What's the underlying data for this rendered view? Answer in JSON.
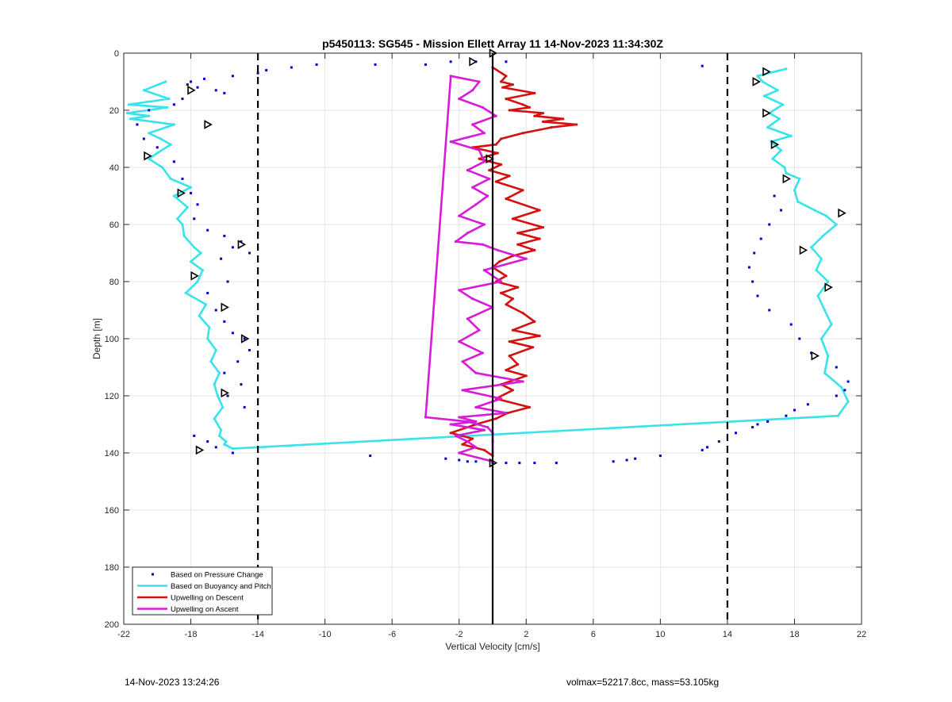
{
  "footer": {
    "left": "14-Nov-2023 13:24:26",
    "right": "volmax=52217.8cc, mass=53.105kg"
  },
  "colors": {
    "pressure": "#0000cc",
    "buoyancy": "#38e3ea",
    "descent": "#d41111",
    "ascent": "#d81bd8",
    "reference": "#000000"
  },
  "chart_data": {
    "type": "line",
    "title": "p5450113: SG545 - Mission Ellett Array 11 14-Nov-2023 11:34:30Z",
    "xlabel": "Vertical Velocity [cm/s]",
    "ylabel": "Depth [m]",
    "xlim": [
      -22,
      22
    ],
    "ylim": [
      0,
      200
    ],
    "y_reversed": true,
    "grid": true,
    "xticks": [
      -22,
      -18,
      -14,
      -10,
      -6,
      -2,
      2,
      6,
      10,
      14,
      18,
      22
    ],
    "yticks": [
      0,
      20,
      40,
      60,
      80,
      100,
      120,
      140,
      160,
      180,
      200
    ],
    "legend_location": "bottom-left",
    "legend": [
      {
        "label": "Based on Pressure Change",
        "style": "dots",
        "color": "#0000cc"
      },
      {
        "label": "Based on Buoyancy and Pitch",
        "style": "line",
        "color": "#38e3ea"
      },
      {
        "label": "Upwelling on Descent",
        "style": "line",
        "color": "#d41111"
      },
      {
        "label": "Upwelling on Ascent",
        "style": "line",
        "color": "#d81bd8"
      }
    ],
    "reference_lines": [
      {
        "x": -14,
        "style": "dashed"
      },
      {
        "x": 14,
        "style": "dashed"
      },
      {
        "x": 0,
        "style": "solid"
      }
    ],
    "series": [
      {
        "name": "Based on Buoyancy and Pitch",
        "x": [
          -19.5,
          -20.8,
          -19.3,
          -21.7,
          -19.4,
          -21.8,
          -20.5,
          -21.6,
          -19.0,
          -20.5,
          -19.8,
          -19.2,
          -20.0,
          -20.5,
          -19.7,
          -19.2,
          -18.0,
          -19.0,
          -18.2,
          -18.8,
          -18.5,
          -18.4,
          -17.8,
          -17.4,
          -18.0,
          -17.3,
          -17.6,
          -18.3,
          -17.1,
          -17.5,
          -16.9,
          -17.0,
          -16.5,
          -16.8,
          -16.3,
          -16.6,
          -16.4,
          -16.1,
          -16.6,
          -16.2,
          -16.3,
          -15.9,
          -16.0,
          -15.5,
          20.6,
          21.2,
          20.8,
          19.8,
          20.0,
          19.6,
          20.2,
          19.8,
          19.4,
          20.0,
          19.3,
          19.6,
          19.0,
          19.7,
          20.5,
          19.9,
          19.2,
          18.2,
          18.0,
          18.3,
          17.5,
          17.4,
          16.7,
          17.2,
          16.6,
          17.8,
          16.4,
          17.1,
          16.5,
          17.3,
          16.2,
          17.0,
          16.1,
          15.8,
          17.5
        ],
        "y": [
          10,
          13,
          16,
          18,
          19,
          21,
          22,
          23,
          25,
          28,
          30,
          32,
          35,
          37,
          40,
          44,
          47,
          50,
          54,
          58,
          60,
          64,
          68,
          70,
          73,
          76,
          80,
          84,
          88,
          92,
          96,
          100,
          104,
          108,
          112,
          116,
          120,
          124,
          128,
          132,
          134,
          136,
          137,
          138.5,
          127,
          122,
          117,
          112,
          106,
          100,
          95,
          90,
          85,
          80,
          76,
          72,
          68,
          64,
          60,
          57,
          55,
          52,
          48,
          44,
          42,
          40,
          37,
          34,
          31,
          29,
          26,
          23,
          21,
          18,
          15,
          13,
          10,
          8,
          5.5
        ]
      },
      {
        "name": "Upwelling on Descent",
        "x": [
          0.0,
          0.8,
          0.5,
          1.2,
          0.6,
          2.5,
          0.8,
          1.8,
          2.2,
          1.0,
          3.0,
          2.5,
          4.2,
          3.0,
          5.0,
          3.5,
          1.8,
          0.5,
          0.2,
          -1.2,
          0.3,
          -0.8,
          0.5,
          -0.2,
          1.0,
          0.2,
          1.8,
          0.8,
          2.8,
          1.2,
          3.0,
          1.5,
          2.8,
          1.5,
          2.5,
          1.2,
          0.4,
          0.0,
          0.8,
          0.2,
          1.5,
          0.5,
          1.2,
          0.8,
          1.8,
          2.5,
          1.2,
          2.8,
          1.0,
          2.4,
          1.0,
          1.5,
          0.8,
          2.0,
          0.5,
          1.2,
          0.2,
          2.2,
          0.9,
          0.2,
          -1.0,
          -2.5,
          -1.2,
          -1.8,
          -0.5,
          0.0
        ],
        "y": [
          5,
          8,
          10,
          11,
          12,
          14,
          16,
          18,
          19,
          20,
          21,
          22,
          23,
          24,
          25,
          26,
          28,
          30,
          32,
          33,
          35,
          37,
          39,
          41,
          43,
          45,
          48,
          51,
          55,
          58,
          61,
          63,
          65,
          67,
          69,
          71,
          73,
          75,
          78,
          80,
          82,
          84,
          86,
          88,
          91,
          94,
          97,
          99,
          101,
          103,
          106,
          109,
          111,
          113,
          116,
          118,
          121,
          124,
          126,
          128,
          130,
          133,
          135,
          137,
          139,
          141
        ]
      },
      {
        "name": "Upwelling on Ascent",
        "x": [
          0.0,
          -2.0,
          -1.0,
          -1.5,
          -2.2,
          -0.5,
          -2.5,
          -1.0,
          -2.0,
          0.8,
          -1.0,
          0.5,
          -1.8,
          1.8,
          -1.0,
          -1.8,
          -0.6,
          -2.0,
          -0.8,
          -1.5,
          0.0,
          -1.2,
          -2.0,
          0.5,
          -0.5,
          2.0,
          0.3,
          -0.6,
          -2.2,
          -1.5,
          -0.5,
          -2.0,
          -1.0,
          -0.3,
          -1.2,
          -0.2,
          -1.5,
          -0.5,
          -0.8,
          -2.5,
          -0.5,
          -1.2,
          0.2,
          -0.6,
          -2.0,
          -1.2,
          -0.8,
          -2.5,
          -4.0,
          -1.5,
          -0.3,
          0.0,
          0.0,
          0.0
        ],
        "y": [
          143,
          140,
          138,
          136,
          134,
          132,
          130,
          129,
          127.5,
          126,
          124,
          121,
          118,
          115,
          112,
          108,
          105,
          101,
          97,
          93,
          89,
          86,
          83,
          80,
          76,
          72,
          69,
          67,
          66,
          63,
          60,
          57,
          53,
          50,
          47,
          44,
          41,
          38,
          34,
          31,
          28,
          25,
          22,
          19,
          16,
          13,
          10,
          8,
          127.5,
          129,
          131,
          133,
          136,
          140
        ]
      },
      {
        "name": "Based on Pressure Change",
        "x": [
          -1.0,
          -2.5,
          -4.0,
          -7.0,
          -10.5,
          -12.0,
          -13.5,
          -14.0,
          -15.5,
          -17.2,
          -18.0,
          -18.2,
          -17.6,
          -16.5,
          -16.0,
          -18.5,
          -19.0,
          -20.5,
          -21.2,
          -20.8,
          -20.0,
          -19.0,
          -18.5,
          -18.0,
          -17.6,
          -17.8,
          -17.0,
          -16.0,
          -15.0,
          -15.5,
          -14.5,
          -16.2,
          -15.8,
          -17.0,
          -16.5,
          -16.0,
          -15.5,
          -14.8,
          -14.5,
          -15.2,
          -16.0,
          -15.0,
          -15.8,
          -14.8,
          -17.8,
          -17.0,
          -16.5,
          -15.5,
          -7.3,
          -2.8,
          -2.0,
          -1.5,
          -1.0,
          0.0,
          0.8,
          1.6,
          2.5,
          3.8,
          7.2,
          8.0,
          8.5,
          10.0,
          12.5,
          12.8,
          13.5,
          14.5,
          15.5,
          15.8,
          16.4,
          17.5,
          18.0,
          18.8,
          20.5,
          21.0,
          21.2,
          20.5,
          19.0,
          18.3,
          17.8,
          16.5,
          15.8,
          15.5,
          15.3,
          15.6,
          16.0,
          16.5,
          17.2,
          16.8,
          12.5,
          0.8
        ],
        "y": [
          3,
          3,
          4,
          4,
          4,
          5,
          6,
          7,
          8,
          9,
          10,
          11,
          12,
          13,
          14,
          16,
          18,
          20,
          25,
          30,
          33,
          38,
          44,
          49,
          53,
          58,
          62,
          64,
          66,
          68,
          70,
          72,
          80,
          84,
          90,
          94,
          98,
          100,
          104,
          108,
          112,
          116,
          120,
          124,
          134,
          136,
          138,
          140,
          141,
          142,
          142.5,
          143,
          143,
          143.5,
          143.5,
          143.5,
          143.5,
          143.5,
          143,
          142.5,
          142,
          141,
          139,
          138,
          136,
          133,
          131,
          130,
          129,
          127,
          125,
          123,
          120,
          118,
          115,
          110,
          105,
          100,
          95,
          90,
          85,
          80,
          75,
          70,
          65,
          60,
          55,
          50,
          4.5,
          3
        ]
      }
    ],
    "markers": [
      {
        "x": -18.0,
        "y": 13
      },
      {
        "x": -17.0,
        "y": 25
      },
      {
        "x": -20.6,
        "y": 36
      },
      {
        "x": -18.6,
        "y": 49
      },
      {
        "x": -15.0,
        "y": 67
      },
      {
        "x": -17.8,
        "y": 78
      },
      {
        "x": -16.0,
        "y": 89
      },
      {
        "x": -14.8,
        "y": 100
      },
      {
        "x": -16.0,
        "y": 119
      },
      {
        "x": -17.5,
        "y": 139
      },
      {
        "x": -1.2,
        "y": 3
      },
      {
        "x": 0.0,
        "y": 0
      },
      {
        "x": -0.2,
        "y": 37
      },
      {
        "x": 0.0,
        "y": 143.5
      },
      {
        "x": 16.3,
        "y": 6.5
      },
      {
        "x": 15.7,
        "y": 10
      },
      {
        "x": 16.3,
        "y": 21
      },
      {
        "x": 16.8,
        "y": 32
      },
      {
        "x": 17.5,
        "y": 44
      },
      {
        "x": 20.8,
        "y": 56
      },
      {
        "x": 18.5,
        "y": 69
      },
      {
        "x": 20.0,
        "y": 82
      },
      {
        "x": 19.2,
        "y": 106
      }
    ]
  }
}
